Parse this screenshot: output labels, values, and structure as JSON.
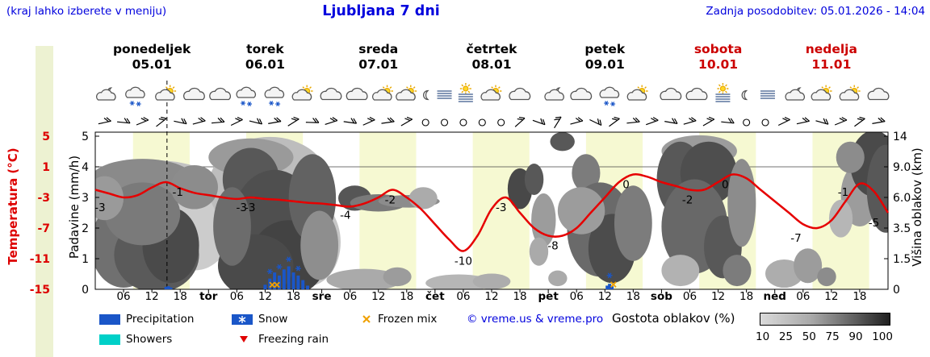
{
  "header": {
    "hint": "(kraj lahko izberete v meniju)",
    "title": "Ljubljana 7 dni",
    "updated": "Zadnja posodobitev: 05.01.2026 - 14:04",
    "accent_color": "#0000dd"
  },
  "days": [
    {
      "name": "ponedeljek",
      "date": "05.01",
      "color": "#000000"
    },
    {
      "name": "torek",
      "date": "06.01",
      "color": "#000000"
    },
    {
      "name": "sreda",
      "date": "07.01",
      "color": "#000000"
    },
    {
      "name": "četrtek",
      "date": "08.01",
      "color": "#000000"
    },
    {
      "name": "petek",
      "date": "09.01",
      "color": "#000000"
    },
    {
      "name": "sobota",
      "date": "10.01",
      "color": "#cc0000"
    },
    {
      "name": "nedelja",
      "date": "11.01",
      "color": "#cc0000"
    }
  ],
  "axes": {
    "temperature": {
      "title": "Temperatura (°C)",
      "color": "#dd0000",
      "ticks": [
        "5",
        "1",
        "-3",
        "-7",
        "-11",
        "-15"
      ]
    },
    "precipitation": {
      "title": "Padavine (mm/h)",
      "color": "#000000",
      "ticks": [
        "5",
        "4",
        "3",
        "2",
        "1",
        "0"
      ]
    },
    "cloud_height": {
      "title": "Višina oblakov (km)",
      "color": "#000000",
      "ticks": [
        "14",
        "9.0",
        "6.0",
        "3.5",
        "1.5",
        "0"
      ]
    }
  },
  "x_axis": {
    "hour_labels": [
      "06",
      "12",
      "18"
    ],
    "day_abbrevs": [
      "tor",
      "sre",
      "čet",
      "pet",
      "sob",
      "ned"
    ]
  },
  "legend": {
    "precipitation": "Precipitation",
    "showers": "Showers",
    "snow": "Snow",
    "freezing_rain": "Freezing rain",
    "frozen_mix": "Frozen mix",
    "copyright": "© vreme.us & vreme.pro",
    "cloud_density_label": "Gostota oblakov (%)",
    "scale_values": [
      "10",
      "25",
      "50",
      "75",
      "90",
      "100"
    ],
    "colors": {
      "precipitation": "#1a56c8",
      "showers": "#00d0c8",
      "snow": "#1a56c8",
      "freezing_rain": "#e00000",
      "frozen_mix": "#f0a000"
    }
  },
  "chart_data": {
    "type": "meteogram",
    "x_hours_range": [
      0,
      168
    ],
    "current_time_hour": 15.2,
    "daylight_band_hours": [
      8,
      20
    ],
    "colors": {
      "temp_line": "#e60000",
      "daylight_band": "#f6f9d2",
      "left_strip": "#edf2d2"
    },
    "temp_series": {
      "step_hours": 3,
      "unit": "°C",
      "values": [
        -2,
        -2.5,
        -3,
        -2.7,
        -1.7,
        -1,
        -1.8,
        -2.4,
        -2.7,
        -3,
        -3.2,
        -3,
        -3.2,
        -3.3,
        -3.5,
        -3.7,
        -3.8,
        -4,
        -4.2,
        -3.8,
        -3,
        -2,
        -3,
        -4.5,
        -6.5,
        -8.5,
        -10,
        -8,
        -4.5,
        -3,
        -5,
        -7,
        -8,
        -8,
        -7,
        -5,
        -3,
        -1,
        0,
        -0.3,
        -1,
        -1.5,
        -2,
        -2,
        -1,
        0,
        -0.5,
        -2,
        -3.5,
        -5,
        -6.5,
        -7,
        -6,
        -3.5,
        -1.2,
        -2.2,
        -5
      ]
    },
    "temp_point_labels": [
      [
        1,
        -3
      ],
      [
        17.5,
        -1
      ],
      [
        31,
        -3
      ],
      [
        32.8,
        -3
      ],
      [
        53,
        -4
      ],
      [
        62.5,
        -2
      ],
      [
        78,
        -10
      ],
      [
        86,
        -3
      ],
      [
        97,
        -8
      ],
      [
        112.5,
        0
      ],
      [
        125.5,
        -2
      ],
      [
        133.5,
        0
      ],
      [
        148.5,
        -7
      ],
      [
        158.5,
        -1
      ],
      [
        165,
        -5
      ]
    ],
    "precip_bars_mm": [
      [
        15,
        0.08
      ],
      [
        15.5,
        0.1
      ],
      [
        16,
        0.06
      ],
      [
        36,
        0.15
      ],
      [
        37,
        0.35
      ],
      [
        38,
        0.55
      ],
      [
        39,
        0.45
      ],
      [
        40,
        0.65
      ],
      [
        41,
        0.75
      ],
      [
        42,
        0.55
      ],
      [
        43,
        0.45
      ],
      [
        44,
        0.3
      ],
      [
        45,
        0.12
      ],
      [
        108.5,
        0.12
      ],
      [
        109,
        0.18
      ],
      [
        109.5,
        0.1
      ]
    ],
    "snow_marks": [
      [
        37,
        0.45
      ],
      [
        39,
        0.6
      ],
      [
        41,
        0.85
      ],
      [
        43,
        0.55
      ],
      [
        109,
        0.32
      ]
    ],
    "frozen_mix_marks": [
      [
        37.5,
        0.04
      ],
      [
        38.5,
        0.04
      ],
      [
        109.8,
        0.05
      ]
    ],
    "weather_icons": [
      [
        2.5,
        "moon-cloud"
      ],
      [
        8.5,
        "cloud-snow"
      ],
      [
        15,
        "sun-cloud"
      ],
      [
        21,
        "cloud"
      ],
      [
        26.5,
        "cloud"
      ],
      [
        32,
        "cloud-snow"
      ],
      [
        38,
        "cloud-snow"
      ],
      [
        44,
        "sun-cloud"
      ],
      [
        50,
        "cloud"
      ],
      [
        55.5,
        "cloud"
      ],
      [
        61,
        "sun-cloud"
      ],
      [
        66,
        "sun-cloud"
      ],
      [
        70.5,
        "moon"
      ],
      [
        74,
        "fog"
      ],
      [
        78.5,
        "fog-sun"
      ],
      [
        84,
        "sun-cloud"
      ],
      [
        90,
        "cloud"
      ],
      [
        97.5,
        "moon-cloud"
      ],
      [
        103,
        "cloud"
      ],
      [
        109,
        "cloud-snow"
      ],
      [
        115,
        "sun-cloud"
      ],
      [
        122,
        "cloud"
      ],
      [
        127.5,
        "cloud"
      ],
      [
        133,
        "fog-sun"
      ],
      [
        138,
        "moon"
      ],
      [
        142.5,
        "fog"
      ],
      [
        148.5,
        "moon-cloud"
      ],
      [
        154,
        "sun-cloud"
      ],
      [
        160,
        "sun-cloud"
      ],
      [
        166,
        "cloud"
      ]
    ],
    "wind_barbs": [
      [
        2,
        -12
      ],
      [
        6,
        6
      ],
      [
        10,
        -22
      ],
      [
        14,
        -38
      ],
      [
        18,
        12
      ],
      [
        22,
        -15
      ],
      [
        26,
        -5
      ],
      [
        30,
        -26
      ],
      [
        34,
        14
      ],
      [
        38,
        -10
      ],
      [
        42,
        -32
      ],
      [
        46,
        2
      ],
      [
        50,
        -18
      ],
      [
        54,
        8
      ],
      [
        58,
        -24
      ],
      [
        62,
        -8
      ],
      [
        66,
        -30
      ],
      [
        70,
        null
      ],
      [
        74,
        null
      ],
      [
        78,
        null
      ],
      [
        82,
        null
      ],
      [
        86,
        null
      ],
      [
        90,
        -42
      ],
      [
        94,
        20
      ],
      [
        98,
        -58
      ],
      [
        102,
        -15
      ],
      [
        106,
        26
      ],
      [
        110,
        -36
      ],
      [
        114,
        -6
      ],
      [
        118,
        -20
      ],
      [
        122,
        10
      ],
      [
        126,
        -16
      ],
      [
        130,
        -30
      ],
      [
        134,
        6
      ],
      [
        138,
        null
      ],
      [
        142,
        null
      ],
      [
        146,
        -26
      ],
      [
        150,
        -12
      ],
      [
        154,
        16
      ],
      [
        158,
        -22
      ],
      [
        162,
        -36
      ],
      [
        166,
        -10
      ]
    ],
    "clouds": [
      [
        "#c6c6c6",
        4,
        0.5,
        6,
        0.2
      ],
      [
        "#c2c2c2",
        13,
        0.38,
        14,
        0.2
      ],
      [
        "#cccccc",
        21,
        0.6,
        8,
        0.28
      ],
      [
        "#bdbdbd",
        37,
        0.35,
        13,
        0.32
      ],
      [
        "#c6c6c6",
        45,
        0.7,
        7,
        0.28
      ],
      [
        "#8a8a8a",
        10,
        0.3,
        11,
        0.13
      ],
      [
        "#707070",
        6,
        0.72,
        7,
        0.27
      ],
      [
        "#5a5a5a",
        13,
        0.78,
        9,
        0.24
      ],
      [
        "#4a4a4a",
        16,
        0.72,
        6,
        0.24
      ],
      [
        "#7a7a7a",
        10,
        0.52,
        8,
        0.2
      ],
      [
        "#9a9a9a",
        2,
        0.42,
        4,
        0.14
      ],
      [
        "#8c8c8c",
        21,
        0.35,
        5,
        0.14
      ],
      [
        "#9a9a9a",
        33,
        0.16,
        9,
        0.12
      ],
      [
        "#585858",
        33,
        0.3,
        6,
        0.2
      ],
      [
        "#4f4f4f",
        38,
        0.58,
        9,
        0.34
      ],
      [
        "#434343",
        41,
        0.8,
        8,
        0.24
      ],
      [
        "#4a4a4a",
        34,
        0.85,
        8,
        0.2
      ],
      [
        "#626262",
        46,
        0.42,
        5,
        0.28
      ],
      [
        "#8e8e8e",
        47.5,
        0.72,
        4,
        0.22
      ],
      [
        "#6c6c6c",
        29,
        0.6,
        4,
        0.25
      ],
      [
        "#565656",
        55,
        0.42,
        3.5,
        0.08
      ],
      [
        "#7a7a7a",
        60,
        0.45,
        6,
        0.055
      ],
      [
        "#8c8c8c",
        66.5,
        0.44,
        6.5,
        0.04
      ],
      [
        "#aaaaaa",
        57,
        0.94,
        8,
        0.07
      ],
      [
        "#9c9c9c",
        64,
        0.92,
        3,
        0.06
      ],
      [
        "#ababab",
        69.5,
        0.42,
        3,
        0.07
      ],
      [
        "#b6b6b6",
        77,
        0.96,
        7,
        0.055
      ],
      [
        "#adadad",
        84,
        0.95,
        4,
        0.05
      ],
      [
        "#484848",
        90,
        0.36,
        2.6,
        0.13
      ],
      [
        "#585858",
        93,
        0.3,
        2,
        0.1
      ],
      [
        "#9c9c9c",
        95,
        0.56,
        2.6,
        0.17
      ],
      [
        "#aaaaaa",
        94,
        0.76,
        2,
        0.09
      ],
      [
        "#585858",
        99,
        0.06,
        2.6,
        0.06
      ],
      [
        "#7c7c7c",
        104,
        0.26,
        3,
        0.12
      ],
      [
        "#6a6a6a",
        107,
        0.62,
        7,
        0.3
      ],
      [
        "#4c4c4c",
        109.5,
        0.74,
        5,
        0.22
      ],
      [
        "#7c7c7c",
        114,
        0.58,
        4,
        0.24
      ],
      [
        "#9c9c9c",
        103,
        0.5,
        5,
        0.15
      ],
      [
        "#aaaaaa",
        98,
        0.93,
        2,
        0.05
      ],
      [
        "#9c9c9c",
        128,
        0.12,
        8,
        0.1
      ],
      [
        "#585858",
        124,
        0.3,
        5,
        0.24
      ],
      [
        "#4e4e4e",
        130,
        0.26,
        6,
        0.2
      ],
      [
        "#686868",
        127,
        0.6,
        7,
        0.3
      ],
      [
        "#585858",
        133,
        0.73,
        4,
        0.2
      ],
      [
        "#8c8c8c",
        137,
        0.45,
        3,
        0.28
      ],
      [
        "#7c7c7c",
        136,
        0.88,
        3,
        0.1
      ],
      [
        "#b2b2b2",
        124,
        0.88,
        4,
        0.1
      ],
      [
        "#adadad",
        146,
        0.9,
        4,
        0.09
      ],
      [
        "#9c9c9c",
        151,
        0.85,
        3,
        0.11
      ],
      [
        "#8c8c8c",
        155,
        0.92,
        2,
        0.06
      ],
      [
        "#9c9c9c",
        162,
        0.4,
        4,
        0.2
      ],
      [
        "#4a4a4a",
        165,
        0.2,
        5,
        0.21
      ],
      [
        "#585858",
        167.5,
        0.36,
        4,
        0.28
      ],
      [
        "#8c8c8c",
        160,
        0.16,
        3,
        0.1
      ],
      [
        "#b6b6b6",
        158,
        0.55,
        2.5,
        0.12
      ]
    ]
  }
}
